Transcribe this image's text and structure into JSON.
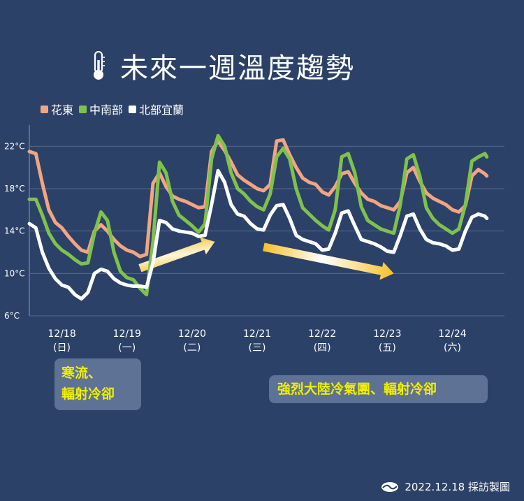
{
  "title": "未來一週溫度趨勢",
  "icons": {
    "title": "thermometer-icon",
    "footer": "cwb-logo-icon"
  },
  "legend": [
    {
      "name": "花東",
      "color": "#f2a582"
    },
    {
      "name": "中南部",
      "color": "#7ec24d"
    },
    {
      "name": "北部宜蘭",
      "color": "#ffffff"
    }
  ],
  "notes": {
    "cold_surge": [
      "寒流、",
      "輻射冷卻"
    ],
    "continental": "強烈大陸冷氣團、輻射冷卻"
  },
  "footer": {
    "date": "2022.12.18 採訪製圖"
  },
  "chart_data": {
    "type": "line",
    "ylim": [
      6,
      24
    ],
    "yticks": [
      6,
      10,
      14,
      18,
      22
    ],
    "ytick_labels": [
      "6°C",
      "10°C",
      "14°C",
      "18°C",
      "22°C"
    ],
    "x_range": [
      17.5,
      24.8
    ],
    "xticks": [
      {
        "x": 18,
        "date": "12/18",
        "day": "(日)"
      },
      {
        "x": 19,
        "date": "12/19",
        "day": "(一)"
      },
      {
        "x": 20,
        "date": "12/20",
        "day": "(二)"
      },
      {
        "x": 21,
        "date": "12/21",
        "day": "(三)"
      },
      {
        "x": 22,
        "date": "12/22",
        "day": "(四)"
      },
      {
        "x": 23,
        "date": "12/23",
        "day": "(五)"
      },
      {
        "x": 24,
        "date": "12/24",
        "day": "(六)"
      }
    ],
    "grid": true,
    "series": [
      {
        "name": "花東",
        "color": "#f2a582",
        "points": [
          [
            17.5,
            21.5
          ],
          [
            17.6,
            21.3
          ],
          [
            17.7,
            18.5
          ],
          [
            17.8,
            16
          ],
          [
            17.9,
            14.8
          ],
          [
            18,
            14.3
          ],
          [
            18.1,
            13.5
          ],
          [
            18.2,
            12.8
          ],
          [
            18.3,
            12.2
          ],
          [
            18.4,
            12
          ],
          [
            18.5,
            14
          ],
          [
            18.6,
            14.6
          ],
          [
            18.7,
            14
          ],
          [
            18.8,
            13.2
          ],
          [
            18.9,
            12.6
          ],
          [
            19,
            12.2
          ],
          [
            19.1,
            12
          ],
          [
            19.2,
            11.6
          ],
          [
            19.3,
            11.8
          ],
          [
            19.4,
            18.5
          ],
          [
            19.5,
            19.5
          ],
          [
            19.6,
            18.2
          ],
          [
            19.7,
            17.3
          ],
          [
            19.8,
            17
          ],
          [
            19.9,
            16.8
          ],
          [
            20,
            16.5
          ],
          [
            20.1,
            16.2
          ],
          [
            20.2,
            16.3
          ],
          [
            20.3,
            21.5
          ],
          [
            20.4,
            22.5
          ],
          [
            20.5,
            21.6
          ],
          [
            20.6,
            20.5
          ],
          [
            20.7,
            19.3
          ],
          [
            20.8,
            18.8
          ],
          [
            20.9,
            18.4
          ],
          [
            21,
            18
          ],
          [
            21.1,
            17.8
          ],
          [
            21.2,
            18.4
          ],
          [
            21.3,
            22.5
          ],
          [
            21.4,
            22.6
          ],
          [
            21.5,
            21.2
          ],
          [
            21.6,
            20
          ],
          [
            21.7,
            19
          ],
          [
            21.8,
            18.6
          ],
          [
            21.9,
            18.4
          ],
          [
            22,
            17.7
          ],
          [
            22.1,
            17.4
          ],
          [
            22.2,
            18.2
          ],
          [
            22.3,
            19.4
          ],
          [
            22.4,
            19.6
          ],
          [
            22.5,
            18.5
          ],
          [
            22.6,
            17.6
          ],
          [
            22.7,
            17
          ],
          [
            22.8,
            16.8
          ],
          [
            22.9,
            16.4
          ],
          [
            23,
            16.2
          ],
          [
            23.1,
            16
          ],
          [
            23.2,
            16.8
          ],
          [
            23.3,
            19.5
          ],
          [
            23.4,
            20
          ],
          [
            23.5,
            18.7
          ],
          [
            23.6,
            17.6
          ],
          [
            23.7,
            17.1
          ],
          [
            23.8,
            16.8
          ],
          [
            23.9,
            16.5
          ],
          [
            24,
            16
          ],
          [
            24.1,
            15.8
          ],
          [
            24.2,
            16.4
          ],
          [
            24.3,
            19.2
          ],
          [
            24.4,
            19.8
          ],
          [
            24.5,
            19.4
          ],
          [
            24.53,
            19.2
          ]
        ]
      },
      {
        "name": "中南部",
        "color": "#7ec24d",
        "points": [
          [
            17.5,
            17
          ],
          [
            17.6,
            17
          ],
          [
            17.7,
            15.5
          ],
          [
            17.8,
            13.8
          ],
          [
            17.9,
            12.8
          ],
          [
            18,
            12.2
          ],
          [
            18.1,
            11.8
          ],
          [
            18.2,
            11.3
          ],
          [
            18.3,
            10.9
          ],
          [
            18.4,
            11
          ],
          [
            18.5,
            13.8
          ],
          [
            18.6,
            15.8
          ],
          [
            18.7,
            15
          ],
          [
            18.8,
            12
          ],
          [
            18.9,
            10.2
          ],
          [
            19,
            9.6
          ],
          [
            19.1,
            9.4
          ],
          [
            19.2,
            8.6
          ],
          [
            19.3,
            8
          ],
          [
            19.4,
            13
          ],
          [
            19.5,
            20.5
          ],
          [
            19.6,
            19.5
          ],
          [
            19.7,
            16.8
          ],
          [
            19.8,
            15.5
          ],
          [
            19.9,
            15
          ],
          [
            20,
            14.5
          ],
          [
            20.1,
            13.9
          ],
          [
            20.2,
            14.7
          ],
          [
            20.3,
            20.8
          ],
          [
            20.4,
            23
          ],
          [
            20.5,
            22
          ],
          [
            20.6,
            19.5
          ],
          [
            20.7,
            18
          ],
          [
            20.8,
            17.5
          ],
          [
            20.9,
            16.8
          ],
          [
            21,
            16.3
          ],
          [
            21.1,
            16
          ],
          [
            21.2,
            17.5
          ],
          [
            21.3,
            21
          ],
          [
            21.4,
            21.8
          ],
          [
            21.5,
            20.8
          ],
          [
            21.6,
            18
          ],
          [
            21.7,
            16.2
          ],
          [
            21.8,
            15.6
          ],
          [
            21.9,
            15
          ],
          [
            22,
            14.5
          ],
          [
            22.1,
            14.1
          ],
          [
            22.2,
            16
          ],
          [
            22.3,
            21
          ],
          [
            22.4,
            21.3
          ],
          [
            22.5,
            19.5
          ],
          [
            22.6,
            16.3
          ],
          [
            22.7,
            15
          ],
          [
            22.8,
            14.6
          ],
          [
            22.9,
            14.2
          ],
          [
            23,
            14
          ],
          [
            23.1,
            13.8
          ],
          [
            23.2,
            16.5
          ],
          [
            23.3,
            20.8
          ],
          [
            23.4,
            21.2
          ],
          [
            23.5,
            19.2
          ],
          [
            23.6,
            16.2
          ],
          [
            23.7,
            15.2
          ],
          [
            23.8,
            14.6
          ],
          [
            23.9,
            14.2
          ],
          [
            24,
            13.8
          ],
          [
            24.1,
            14.2
          ],
          [
            24.2,
            16.5
          ],
          [
            24.3,
            20.6
          ],
          [
            24.4,
            21
          ],
          [
            24.5,
            21.3
          ],
          [
            24.53,
            21
          ]
        ]
      },
      {
        "name": "北部宜蘭",
        "color": "#ffffff",
        "points": [
          [
            17.5,
            14.7
          ],
          [
            17.6,
            14.3
          ],
          [
            17.7,
            12
          ],
          [
            17.8,
            10.5
          ],
          [
            17.9,
            9.5
          ],
          [
            18,
            8.9
          ],
          [
            18.1,
            8.7
          ],
          [
            18.2,
            8
          ],
          [
            18.3,
            7.6
          ],
          [
            18.4,
            8.2
          ],
          [
            18.5,
            10
          ],
          [
            18.6,
            10.4
          ],
          [
            18.7,
            10.2
          ],
          [
            18.8,
            9.5
          ],
          [
            18.9,
            9.1
          ],
          [
            19,
            8.9
          ],
          [
            19.1,
            8.8
          ],
          [
            19.2,
            8.8
          ],
          [
            19.3,
            8.7
          ],
          [
            19.4,
            11
          ],
          [
            19.5,
            15
          ],
          [
            19.6,
            14.8
          ],
          [
            19.7,
            14.2
          ],
          [
            19.8,
            14
          ],
          [
            19.9,
            13.9
          ],
          [
            20,
            13.8
          ],
          [
            20.1,
            13.5
          ],
          [
            20.2,
            13.6
          ],
          [
            20.3,
            16.5
          ],
          [
            20.4,
            19.7
          ],
          [
            20.5,
            18.6
          ],
          [
            20.6,
            16.5
          ],
          [
            20.7,
            15.6
          ],
          [
            20.8,
            15.4
          ],
          [
            20.9,
            14.7
          ],
          [
            21,
            14.2
          ],
          [
            21.1,
            14.1
          ],
          [
            21.2,
            15.5
          ],
          [
            21.3,
            16.4
          ],
          [
            21.4,
            16.5
          ],
          [
            21.5,
            15.2
          ],
          [
            21.6,
            13.6
          ],
          [
            21.7,
            13.2
          ],
          [
            21.8,
            13
          ],
          [
            21.9,
            12.8
          ],
          [
            22,
            12.2
          ],
          [
            22.1,
            12.3
          ],
          [
            22.2,
            13.8
          ],
          [
            22.3,
            15.7
          ],
          [
            22.4,
            15.9
          ],
          [
            22.5,
            14.5
          ],
          [
            22.6,
            13.2
          ],
          [
            22.7,
            13
          ],
          [
            22.8,
            12.8
          ],
          [
            22.9,
            12.5
          ],
          [
            23,
            12.1
          ],
          [
            23.1,
            12
          ],
          [
            23.2,
            13.6
          ],
          [
            23.3,
            15.4
          ],
          [
            23.4,
            15.6
          ],
          [
            23.5,
            14.2
          ],
          [
            23.6,
            13.2
          ],
          [
            23.7,
            12.9
          ],
          [
            23.8,
            12.8
          ],
          [
            23.9,
            12.6
          ],
          [
            24,
            12.2
          ],
          [
            24.1,
            12.3
          ],
          [
            24.2,
            14
          ],
          [
            24.3,
            15.3
          ],
          [
            24.4,
            15.6
          ],
          [
            24.5,
            15.4
          ],
          [
            24.53,
            15.2
          ]
        ]
      }
    ],
    "annotations": [
      {
        "type": "arrow",
        "from": [
          19.2,
          10.5
        ],
        "to": [
          20.35,
          13.0
        ]
      },
      {
        "type": "arrow",
        "from": [
          21.1,
          12.5
        ],
        "to": [
          23.1,
          10.0
        ]
      }
    ]
  }
}
